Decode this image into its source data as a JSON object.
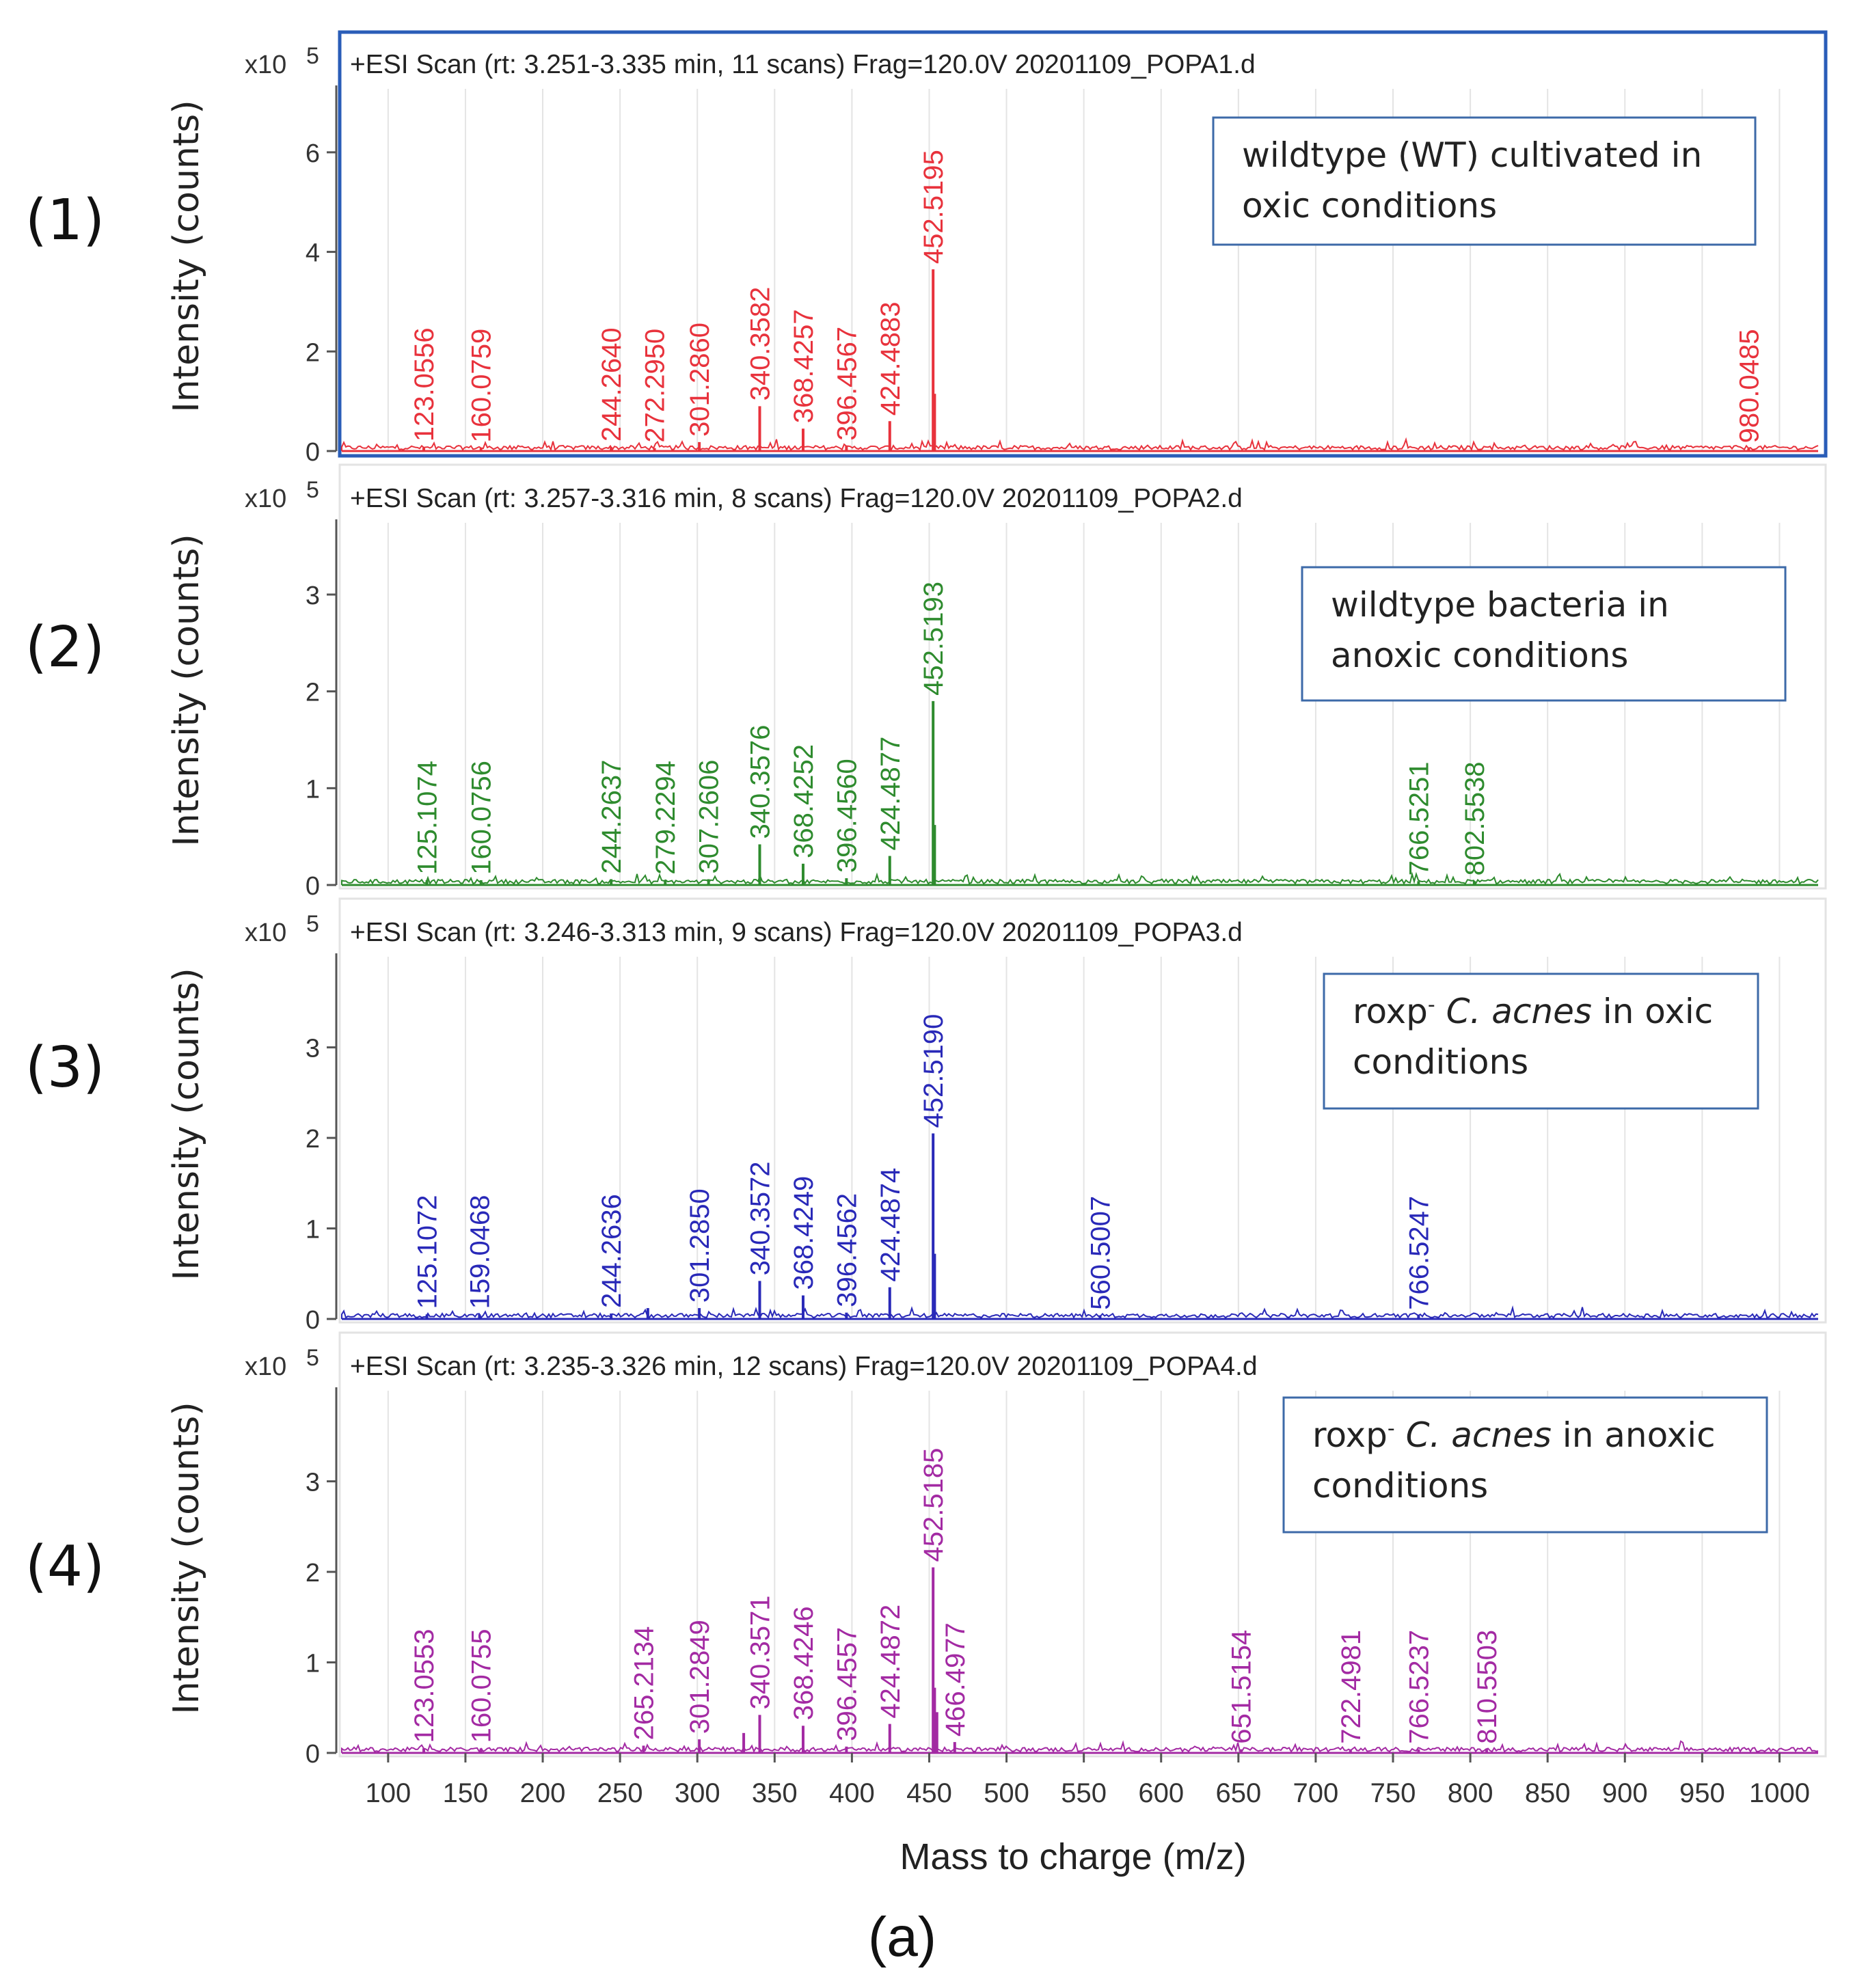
{
  "figure_label": "(a)",
  "x_axis": {
    "label": "Mass to charge (m/z)",
    "range": [
      70,
      1025
    ],
    "ticks": [
      100,
      150,
      200,
      250,
      300,
      350,
      400,
      450,
      500,
      550,
      600,
      650,
      700,
      750,
      800,
      850,
      900,
      950,
      1000
    ]
  },
  "chart_data": [
    {
      "type": "spectrum",
      "panel_label": "(1)",
      "title": "+ESI Scan (rt: 3.251-3.335 min, 11 scans) Frag=120.0V 20201109_POPA1.d",
      "scale_label": "x10",
      "scale_exponent": "5",
      "ylabel": "Intensity (counts)",
      "ylim": [
        0,
        7
      ],
      "yticks": [
        0,
        2,
        4,
        6
      ],
      "color": "#e8323c",
      "highlighted": true,
      "highlight_color": "#2a5db8",
      "annotation": [
        "wildtype (WT)  cultivated in",
        "oxic  conditions"
      ],
      "peaks": [
        {
          "mz": 123.0556,
          "label": "123.0556",
          "intensity": 0.08
        },
        {
          "mz": 160.0759,
          "label": "160.0759",
          "intensity": 0.06
        },
        {
          "mz": 244.264,
          "label": "244.2640",
          "intensity": 0.08
        },
        {
          "mz": 272.295,
          "label": "272.2950",
          "intensity": 0.06
        },
        {
          "mz": 301.286,
          "label": "301.2860",
          "intensity": 0.18
        },
        {
          "mz": 340.3582,
          "label": "340.3582",
          "intensity": 0.9
        },
        {
          "mz": 368.4257,
          "label": "368.4257",
          "intensity": 0.45
        },
        {
          "mz": 396.4567,
          "label": "396.4567",
          "intensity": 0.1
        },
        {
          "mz": 424.4883,
          "label": "424.4883",
          "intensity": 0.6
        },
        {
          "mz": 452.5195,
          "label": "452.5195",
          "intensity": 3.65
        },
        {
          "mz": 980.0485,
          "label": "980.0485",
          "intensity": 0.05
        }
      ],
      "minor_peaks": [
        {
          "mz": 453.5,
          "intensity": 1.15
        }
      ]
    },
    {
      "type": "spectrum",
      "panel_label": "(2)",
      "title": "+ESI Scan (rt: 3.257-3.316 min, 8 scans) Frag=120.0V 20201109_POPA2.d",
      "scale_label": "x10",
      "scale_exponent": "5",
      "ylabel": "Intensity (counts)",
      "ylim": [
        0,
        3.6
      ],
      "yticks": [
        0,
        1,
        2,
        3
      ],
      "color": "#2e8b2e",
      "highlighted": false,
      "annotation": [
        "wildtype bacteria in",
        "anoxic conditions"
      ],
      "peaks": [
        {
          "mz": 125.1074,
          "label": "125.1074",
          "intensity": 0.05
        },
        {
          "mz": 160.0756,
          "label": "160.0756",
          "intensity": 0.05
        },
        {
          "mz": 244.2637,
          "label": "244.2637",
          "intensity": 0.06
        },
        {
          "mz": 279.2294,
          "label": "279.2294",
          "intensity": 0.05
        },
        {
          "mz": 307.2606,
          "label": "307.2606",
          "intensity": 0.06
        },
        {
          "mz": 340.3576,
          "label": "340.3576",
          "intensity": 0.42
        },
        {
          "mz": 368.4252,
          "label": "368.4252",
          "intensity": 0.22
        },
        {
          "mz": 396.456,
          "label": "396.4560",
          "intensity": 0.07
        },
        {
          "mz": 424.4877,
          "label": "424.4877",
          "intensity": 0.3
        },
        {
          "mz": 452.5193,
          "label": "452.5193",
          "intensity": 1.9
        },
        {
          "mz": 766.5251,
          "label": "766.5251",
          "intensity": 0.04
        },
        {
          "mz": 802.5538,
          "label": "802.5538",
          "intensity": 0.04
        }
      ],
      "minor_peaks": [
        {
          "mz": 453.5,
          "intensity": 0.62
        }
      ]
    },
    {
      "type": "spectrum",
      "panel_label": "(3)",
      "title": "+ESI Scan (rt: 3.246-3.313 min, 9 scans) Frag=120.0V 20201109_POPA3.d",
      "scale_label": "x10",
      "scale_exponent": "5",
      "ylabel": "Intensity (counts)",
      "ylim": [
        0,
        3.85
      ],
      "yticks": [
        0,
        1,
        2,
        3
      ],
      "color": "#2929b8",
      "highlighted": false,
      "annotation_parts": [
        [
          {
            "t": "roxp",
            "style": "normal"
          },
          {
            "t": "-",
            "style": "sup"
          },
          {
            "t": " C. acnes",
            "style": "italic"
          },
          {
            "t": " in oxic",
            "style": "normal"
          }
        ],
        [
          {
            "t": "conditions",
            "style": "normal"
          }
        ]
      ],
      "peaks": [
        {
          "mz": 125.1072,
          "label": "125.1072",
          "intensity": 0.05
        },
        {
          "mz": 159.0468,
          "label": "159.0468",
          "intensity": 0.05
        },
        {
          "mz": 244.2636,
          "label": "244.2636",
          "intensity": 0.06
        },
        {
          "mz": 301.285,
          "label": "301.2850",
          "intensity": 0.12
        },
        {
          "mz": 340.3572,
          "label": "340.3572",
          "intensity": 0.42
        },
        {
          "mz": 368.4249,
          "label": "368.4249",
          "intensity": 0.26
        },
        {
          "mz": 396.4562,
          "label": "396.4562",
          "intensity": 0.07
        },
        {
          "mz": 424.4874,
          "label": "424.4874",
          "intensity": 0.35
        },
        {
          "mz": 452.519,
          "label": "452.5190",
          "intensity": 2.05
        },
        {
          "mz": 560.5007,
          "label": "560.5007",
          "intensity": 0.04
        },
        {
          "mz": 766.5247,
          "label": "766.5247",
          "intensity": 0.04
        }
      ],
      "minor_peaks": [
        {
          "mz": 453.5,
          "intensity": 0.72
        },
        {
          "mz": 268,
          "intensity": 0.12
        }
      ]
    },
    {
      "type": "spectrum",
      "panel_label": "(4)",
      "title": "+ESI Scan (rt: 3.235-3.326 min, 12 scans) Frag=120.0V 20201109_POPA4.d",
      "scale_label": "x10",
      "scale_exponent": "5",
      "ylabel": "Intensity (counts)",
      "ylim": [
        0,
        3.85
      ],
      "yticks": [
        0,
        1,
        2,
        3
      ],
      "color": "#a32aa3",
      "highlighted": false,
      "annotation_parts": [
        [
          {
            "t": "roxp",
            "style": "normal"
          },
          {
            "t": "-",
            "style": "sup"
          },
          {
            "t": " C. acnes",
            "style": "italic"
          },
          {
            "t": " in anoxic",
            "style": "normal"
          }
        ],
        [
          {
            "t": "conditions",
            "style": "normal"
          }
        ]
      ],
      "peaks": [
        {
          "mz": 123.0553,
          "label": "123.0553",
          "intensity": 0.05
        },
        {
          "mz": 160.0755,
          "label": "160.0755",
          "intensity": 0.05
        },
        {
          "mz": 265.2134,
          "label": "265.2134",
          "intensity": 0.08
        },
        {
          "mz": 301.2849,
          "label": "301.2849",
          "intensity": 0.15
        },
        {
          "mz": 340.3571,
          "label": "340.3571",
          "intensity": 0.42
        },
        {
          "mz": 368.4246,
          "label": "368.4246",
          "intensity": 0.3
        },
        {
          "mz": 396.4557,
          "label": "396.4557",
          "intensity": 0.07
        },
        {
          "mz": 424.4872,
          "label": "424.4872",
          "intensity": 0.32
        },
        {
          "mz": 452.5185,
          "label": "452.5185",
          "intensity": 2.05
        },
        {
          "mz": 466.4977,
          "label": "466.4977",
          "intensity": 0.12
        },
        {
          "mz": 651.5154,
          "label": "651.5154",
          "intensity": 0.04
        },
        {
          "mz": 722.4981,
          "label": "722.4981",
          "intensity": 0.04
        },
        {
          "mz": 766.5237,
          "label": "766.5237",
          "intensity": 0.04
        },
        {
          "mz": 810.5503,
          "label": "810.5503",
          "intensity": 0.04
        }
      ],
      "minor_peaks": [
        {
          "mz": 453.5,
          "intensity": 0.72
        },
        {
          "mz": 455,
          "intensity": 0.45
        },
        {
          "mz": 330,
          "intensity": 0.22
        }
      ]
    }
  ]
}
